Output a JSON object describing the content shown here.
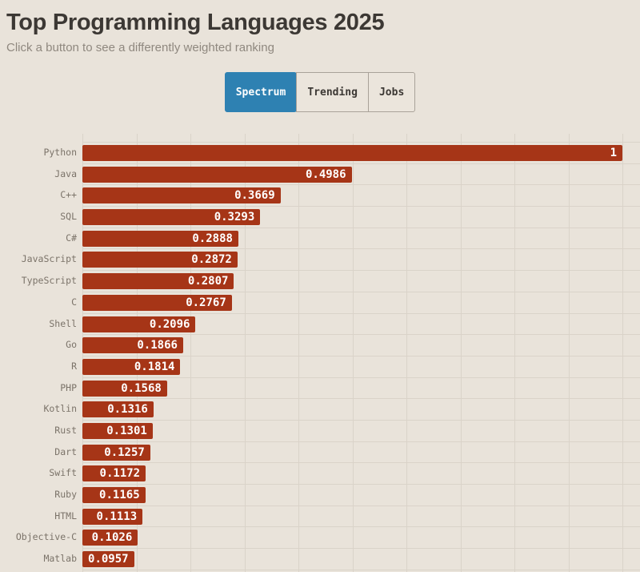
{
  "header": {
    "title": "Top Programming Languages 2025",
    "subtitle": "Click a button to see a differently weighted ranking"
  },
  "tabs": [
    {
      "label": "Spectrum",
      "active": true
    },
    {
      "label": "Trending",
      "active": false
    },
    {
      "label": "Jobs",
      "active": false
    }
  ],
  "colors": {
    "background": "#e9e3da",
    "bar": "#a63517",
    "active_tab": "#2e81b2",
    "gridline": "#dad3c9",
    "title_text": "#3c3834",
    "subtitle_text": "#8f887f",
    "category_label_text": "#7b7369",
    "value_text": "#ffffff"
  },
  "chart_data": {
    "type": "bar",
    "orientation": "horizontal",
    "title": "Top Programming Languages 2025",
    "categories": [
      "Python",
      "Java",
      "C++",
      "SQL",
      "C#",
      "JavaScript",
      "TypeScript",
      "C",
      "Shell",
      "Go",
      "R",
      "PHP",
      "Kotlin",
      "Rust",
      "Dart",
      "Swift",
      "Ruby",
      "HTML",
      "Objective-C",
      "Matlab"
    ],
    "values": [
      1,
      0.4986,
      0.3669,
      0.3293,
      0.2888,
      0.2872,
      0.2807,
      0.2767,
      0.2096,
      0.1866,
      0.1814,
      0.1568,
      0.1316,
      0.1301,
      0.1257,
      0.1172,
      0.1165,
      0.1113,
      0.1026,
      0.0957
    ],
    "value_labels": [
      "1",
      "0.4986",
      "0.3669",
      "0.3293",
      "0.2888",
      "0.2872",
      "0.2807",
      "0.2767",
      "0.2096",
      "0.1866",
      "0.1814",
      "0.1568",
      "0.1316",
      "0.1301",
      "0.1257",
      "0.1172",
      "0.1165",
      "0.1113",
      "0.1026",
      "0.0957"
    ],
    "xlim": [
      0,
      1
    ],
    "grid": true,
    "gridline_interval": 0.1,
    "legend": "none",
    "selected_weighting": "Spectrum"
  }
}
